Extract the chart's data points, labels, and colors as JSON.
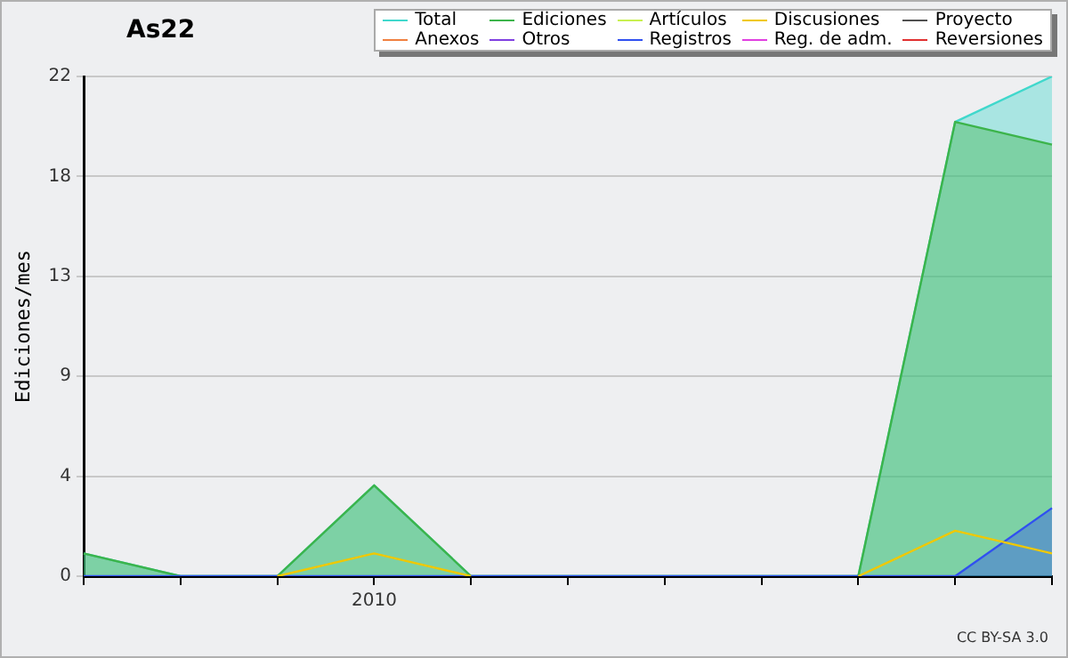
{
  "chart_data": {
    "type": "line",
    "title": "As22",
    "ylabel": "Ediciones/mes",
    "categories": [
      null,
      null,
      null,
      "2010",
      null,
      null,
      null,
      null,
      null,
      null,
      null
    ],
    "ylim": [
      0,
      22
    ],
    "yticks": [
      0,
      {
        "value": 4.4,
        "label": "4"
      },
      {
        "value": 8.8,
        "label": "9"
      },
      {
        "value": 13.2,
        "label": "13"
      },
      {
        "value": 17.6,
        "label": "18"
      },
      22
    ],
    "grid": "y",
    "legend": "top right",
    "marker": "none",
    "line_style": "solid",
    "annotations": [
      "CC BY-SA 3.0"
    ],
    "series": [
      {
        "name": "Total",
        "type": "area",
        "color": "#40d8cc",
        "values": [
          1,
          0,
          0,
          4,
          0,
          0,
          0,
          0,
          0,
          20,
          22
        ]
      },
      {
        "name": "Ediciones",
        "type": "area",
        "color": "#3cb44b",
        "values": [
          1,
          0,
          0,
          4,
          0,
          0,
          0,
          0,
          0,
          20,
          19
        ]
      },
      {
        "name": "Artículos",
        "type": "line",
        "color": "#c8f050",
        "values": [
          null,
          null,
          null,
          null,
          null,
          null,
          null,
          null,
          null,
          null,
          null
        ]
      },
      {
        "name": "Discusiones",
        "type": "line",
        "color": "#f0c800",
        "values": [
          null,
          null,
          0,
          1,
          0,
          null,
          null,
          null,
          0,
          2,
          1
        ]
      },
      {
        "name": "Proyecto",
        "type": "line",
        "color": "#505050",
        "values": [
          null,
          null,
          null,
          null,
          null,
          null,
          null,
          null,
          null,
          null,
          null
        ]
      },
      {
        "name": "Anexos",
        "type": "line",
        "color": "#f08040",
        "values": [
          null,
          null,
          null,
          null,
          null,
          null,
          null,
          null,
          null,
          null,
          null
        ]
      },
      {
        "name": "Otros",
        "type": "line",
        "color": "#8040e0",
        "values": [
          null,
          null,
          null,
          null,
          null,
          null,
          null,
          null,
          null,
          null,
          null
        ]
      },
      {
        "name": "Registros",
        "type": "area",
        "color": "#3050f0",
        "values": [
          0,
          0,
          0,
          0,
          0,
          0,
          0,
          0,
          0,
          0,
          3
        ]
      },
      {
        "name": "Reg. de adm.",
        "type": "line",
        "color": "#e040e0",
        "values": [
          null,
          null,
          null,
          null,
          null,
          null,
          null,
          null,
          null,
          null,
          null
        ]
      },
      {
        "name": "Reversiones",
        "type": "line",
        "color": "#e03030",
        "values": [
          null,
          null,
          null,
          null,
          null,
          null,
          null,
          null,
          null,
          null,
          null
        ]
      }
    ]
  }
}
